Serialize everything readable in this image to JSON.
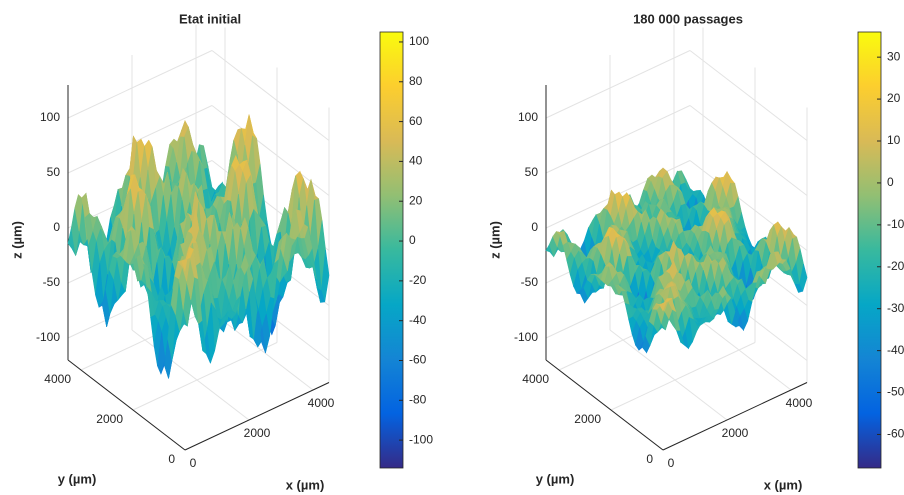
{
  "chart_data": [
    {
      "type": "surface",
      "title": "Etat initial",
      "xlabel": "x (µm)",
      "ylabel": "y (µm)",
      "zlabel": "z (µm)",
      "xlim": [
        0,
        4500
      ],
      "ylim": [
        0,
        4500
      ],
      "zlim": [
        -120,
        130
      ],
      "xticks": [
        0,
        2000,
        4000
      ],
      "yticks": [
        0,
        2000,
        4000
      ],
      "zticks": [
        -100,
        -50,
        0,
        50,
        100
      ],
      "clim": [
        -114,
        105
      ],
      "cticks": [
        -100,
        -80,
        -60,
        -40,
        -20,
        0,
        20,
        40,
        60,
        80,
        100
      ],
      "colormap": [
        "#352a87",
        "#0363e1",
        "#1485d4",
        "#06a7c6",
        "#38b99e",
        "#92bf73",
        "#d9ba56",
        "#fcce2e",
        "#f9fb0e"
      ]
    },
    {
      "type": "surface",
      "title": "180 000 passages",
      "xlabel": "x (µm)",
      "ylabel": "y (µm)",
      "zlabel": "z (µm)",
      "xlim": [
        0,
        4500
      ],
      "ylim": [
        0,
        4500
      ],
      "zlim": [
        -120,
        130
      ],
      "xticks": [
        0,
        2000,
        4000
      ],
      "yticks": [
        0,
        2000,
        4000
      ],
      "zticks": [
        -100,
        -50,
        0,
        50,
        100
      ],
      "clim": [
        -68,
        36
      ],
      "cticks": [
        -60,
        -50,
        -40,
        -30,
        -20,
        -10,
        0,
        10,
        20,
        30
      ],
      "colormap": [
        "#352a87",
        "#0363e1",
        "#1485d4",
        "#06a7c6",
        "#38b99e",
        "#92bf73",
        "#d9ba56",
        "#fcce2e",
        "#f9fb0e"
      ]
    }
  ]
}
